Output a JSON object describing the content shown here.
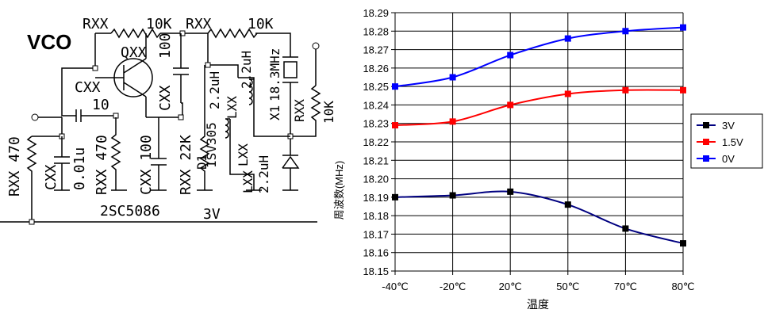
{
  "schematic": {
    "title": "VCO",
    "labels": [
      {
        "id": "rxx-top-left",
        "text": "RXX"
      },
      {
        "id": "10k-top-left",
        "text": "10K"
      },
      {
        "id": "rxx-top-right",
        "text": "RXX"
      },
      {
        "id": "10k-top-right",
        "text": "10K"
      },
      {
        "id": "qxx",
        "text": "QXX"
      },
      {
        "id": "cxx-mid",
        "text": "CXX"
      },
      {
        "id": "ten",
        "text": "10"
      },
      {
        "id": "cxx-vert",
        "text": "CXX"
      },
      {
        "id": "c100-top",
        "text": "100"
      },
      {
        "id": "l22uh-top",
        "text": "2.2uH"
      },
      {
        "id": "f183",
        "text": "18.3MHz"
      },
      {
        "id": "x1",
        "text": "X1"
      },
      {
        "id": "rxx-right",
        "text": "RXX"
      },
      {
        "id": "10k-right",
        "text": "10K"
      },
      {
        "id": "l22uh-mid",
        "text": "2.2uH"
      },
      {
        "id": "lxx-a",
        "text": "LXX"
      },
      {
        "id": "lxx-b",
        "text": "LXX"
      },
      {
        "id": "l22uh-low",
        "text": "2.2uH"
      },
      {
        "id": "lxx-c",
        "text": "LXX"
      },
      {
        "id": "sv305",
        "text": "1SV305"
      },
      {
        "id": "d1",
        "text": "D1"
      },
      {
        "id": "rxx-470",
        "text": "RXX 470"
      },
      {
        "id": "cxx-001",
        "text": "CXX"
      },
      {
        "id": "c001u",
        "text": "0.01u"
      },
      {
        "id": "rxx-470b",
        "text": "RXX 470"
      },
      {
        "id": "cxx-100b",
        "text": "CXX 100"
      },
      {
        "id": "rxx-22k",
        "text": "RXX 22K"
      },
      {
        "id": "transistor",
        "text": "2SC5086"
      },
      {
        "id": "v3",
        "text": "3V"
      }
    ]
  },
  "chart_data": {
    "type": "line",
    "xlabel": "温度",
    "ylabel": "周波数(MHz)",
    "categories": [
      "-40℃",
      "-20℃",
      "20℃",
      "50℃",
      "70℃",
      "80℃"
    ],
    "ylim": [
      18.15,
      18.29
    ],
    "yticks": [
      18.15,
      18.16,
      18.17,
      18.18,
      18.19,
      18.2,
      18.21,
      18.22,
      18.23,
      18.24,
      18.25,
      18.26,
      18.27,
      18.28,
      18.29
    ],
    "ytick_labels": [
      "18.15",
      "18.16",
      "18.17",
      "18.18",
      "18.19",
      "18.20",
      "18.21",
      "18.22",
      "18.23",
      "18.24",
      "18.25",
      "18.26",
      "18.27",
      "18.28",
      "18.29"
    ],
    "grid": true,
    "legend_position": "right",
    "series": [
      {
        "name": "3V",
        "color": "#000080",
        "marker": "#000000",
        "values": [
          18.19,
          18.191,
          18.193,
          18.186,
          18.173,
          18.165
        ]
      },
      {
        "name": "1.5V",
        "color": "#ff0000",
        "marker": "#ff0000",
        "values": [
          18.229,
          18.231,
          18.24,
          18.246,
          18.248,
          18.248
        ]
      },
      {
        "name": "0V",
        "color": "#0000ff",
        "marker": "#0000ff",
        "values": [
          18.25,
          18.255,
          18.267,
          18.276,
          18.28,
          18.282
        ]
      }
    ]
  }
}
